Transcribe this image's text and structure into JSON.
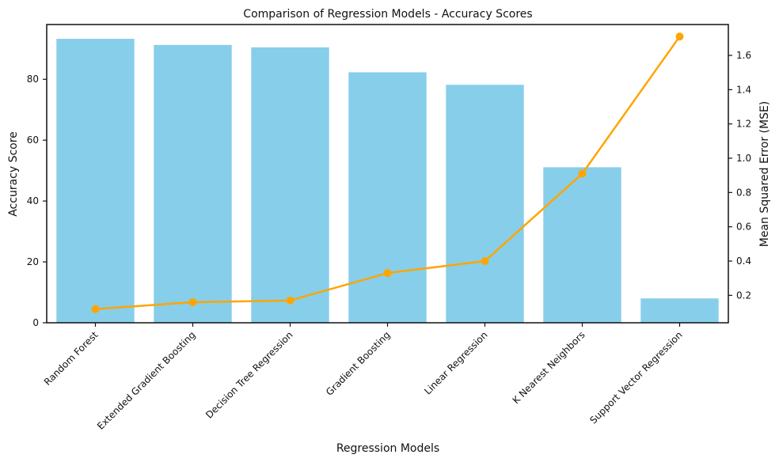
{
  "chart_data": {
    "type": "bar",
    "title": "Comparison of Regression Models - Accuracy Scores",
    "xlabel": "Regression Models",
    "ylabel": "Accuracy Score",
    "y2label": "Mean Squared Error (MSE)",
    "categories": [
      "Random Forest",
      "Extended Gradient Boosting",
      "Decision Tree Regression",
      "Gradient Boosting",
      "Linear Regression",
      "K Nearest Neighbors",
      "Support Vector Regression"
    ],
    "series": [
      {
        "type": "bar",
        "axis": "left",
        "values": [
          93.3,
          91.3,
          90.5,
          82.3,
          78.2,
          51.1,
          8.0
        ],
        "color": "#87CEEB"
      },
      {
        "type": "line",
        "axis": "right",
        "values": [
          0.12,
          0.16,
          0.17,
          0.33,
          0.4,
          0.91,
          1.71
        ],
        "color": "#FFA500"
      }
    ],
    "ylim": [
      0,
      98
    ],
    "y2lim": [
      0.04,
      1.78
    ],
    "yticks": [
      0,
      20,
      40,
      60,
      80
    ],
    "y2ticks": [
      0.2,
      0.4,
      0.6,
      0.8,
      1.0,
      1.2,
      1.4,
      1.6
    ],
    "grid": false,
    "legend": "none"
  }
}
